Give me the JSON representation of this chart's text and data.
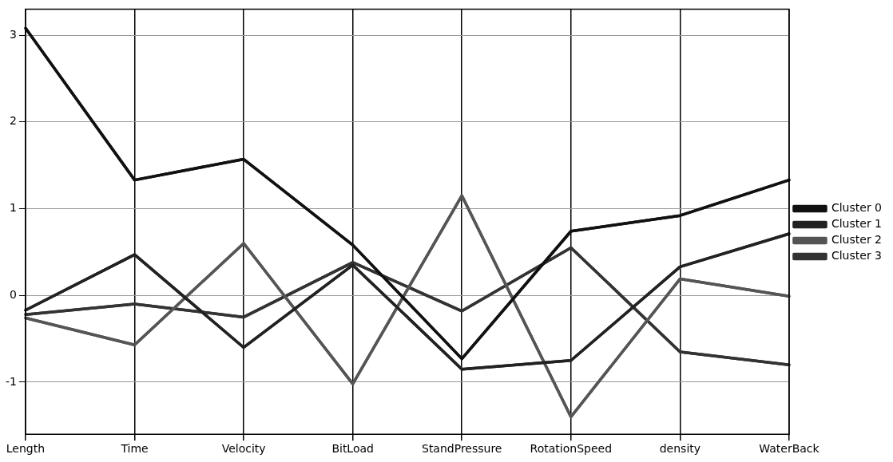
{
  "chart_data": {
    "type": "line",
    "categories": [
      "Length",
      "Time",
      "Velocity",
      "BitLoad",
      "StandPressure",
      "RotationSpeed",
      "density",
      "WaterBack"
    ],
    "series": [
      {
        "name": "Cluster 0",
        "color": "#111111",
        "values": [
          3.08,
          1.33,
          1.57,
          0.58,
          -0.73,
          0.74,
          0.92,
          1.33
        ]
      },
      {
        "name": "Cluster 1",
        "color": "#222222",
        "values": [
          -0.17,
          0.47,
          -0.6,
          0.35,
          -0.85,
          -0.75,
          0.33,
          0.71
        ]
      },
      {
        "name": "Cluster 2",
        "color": "#555555",
        "values": [
          -0.26,
          -0.57,
          0.6,
          -1.02,
          1.15,
          -1.4,
          0.19,
          -0.01
        ]
      },
      {
        "name": "Cluster 3",
        "color": "#333333",
        "values": [
          -0.22,
          -0.1,
          -0.25,
          0.38,
          -0.18,
          0.55,
          -0.65,
          -0.8
        ]
      }
    ],
    "ylim": [
      -1.6,
      3.3
    ],
    "yticks": [
      -1,
      0,
      1,
      2,
      3
    ],
    "grid": true,
    "legend": "right",
    "marker": "none",
    "line_style": "solid"
  }
}
